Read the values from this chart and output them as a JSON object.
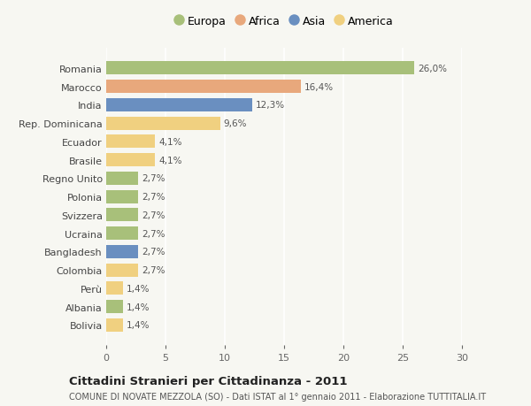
{
  "countries": [
    "Romania",
    "Marocco",
    "India",
    "Rep. Dominicana",
    "Ecuador",
    "Brasile",
    "Regno Unito",
    "Polonia",
    "Svizzera",
    "Ucraina",
    "Bangladesh",
    "Colombia",
    "Perù",
    "Albania",
    "Bolivia"
  ],
  "values": [
    26.0,
    16.4,
    12.3,
    9.6,
    4.1,
    4.1,
    2.7,
    2.7,
    2.7,
    2.7,
    2.7,
    2.7,
    1.4,
    1.4,
    1.4
  ],
  "labels": [
    "26,0%",
    "16,4%",
    "12,3%",
    "9,6%",
    "4,1%",
    "4,1%",
    "2,7%",
    "2,7%",
    "2,7%",
    "2,7%",
    "2,7%",
    "2,7%",
    "1,4%",
    "1,4%",
    "1,4%"
  ],
  "continents": [
    "Europa",
    "Africa",
    "Asia",
    "America",
    "America",
    "America",
    "Europa",
    "Europa",
    "Europa",
    "Europa",
    "Asia",
    "America",
    "America",
    "Europa",
    "America"
  ],
  "colors": {
    "Europa": "#a8c07a",
    "Africa": "#e8a87c",
    "Asia": "#6a8fc0",
    "America": "#f0d080"
  },
  "legend_order": [
    "Europa",
    "Africa",
    "Asia",
    "America"
  ],
  "bg_color": "#f7f7f2",
  "title1": "Cittadini Stranieri per Cittadinanza - 2011",
  "title2": "COMUNE DI NOVATE MEZZOLA (SO) - Dati ISTAT al 1° gennaio 2011 - Elaborazione TUTTITALIA.IT",
  "xlim": [
    0,
    30
  ],
  "xticks": [
    0,
    5,
    10,
    15,
    20,
    25,
    30
  ],
  "label_fontsize": 7.5,
  "ytick_fontsize": 8.0,
  "xtick_fontsize": 8.0,
  "bar_height": 0.72
}
